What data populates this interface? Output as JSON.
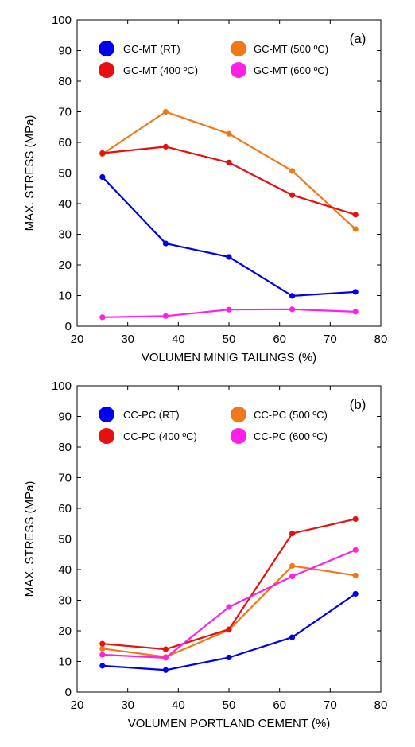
{
  "chart_data": [
    {
      "type": "line",
      "panel_label": "(a)",
      "xlabel": "VOLUMEN MINIG TAILINGS (%)",
      "ylabel": "MAX. STRESS (MPa)",
      "xlim": [
        20,
        80
      ],
      "ylim": [
        0,
        100
      ],
      "xticks": [
        "20",
        "30",
        "40",
        "50",
        "60",
        "70",
        "80"
      ],
      "yticks": [
        "0",
        "10",
        "20",
        "30",
        "40",
        "50",
        "60",
        "70",
        "80",
        "90",
        "100"
      ],
      "grid": false,
      "legend": "top",
      "x": [
        25,
        37.5,
        50,
        62.5,
        75
      ],
      "series": [
        {
          "name": "GC-MT (RT)",
          "color": "#0000ee",
          "values": [
            48.7,
            27.0,
            22.6,
            9.9,
            11.2
          ]
        },
        {
          "name": "GC-MT (500 ºC)",
          "color": "#f07818",
          "values": [
            56.2,
            70.0,
            62.8,
            50.7,
            31.7
          ]
        },
        {
          "name": "GC-MT (400 ºC)",
          "color": "#e61010",
          "values": [
            56.5,
            58.6,
            53.4,
            42.8,
            36.4
          ]
        },
        {
          "name": "GC-MT (600 ºC)",
          "color": "#ff20e8",
          "values": [
            2.9,
            3.3,
            5.4,
            5.5,
            4.7
          ]
        }
      ]
    },
    {
      "type": "line",
      "panel_label": "(b)",
      "xlabel": "VOLUMEN PORTLAND CEMENT (%)",
      "ylabel": "MAX. STRESS (MPa)",
      "xlim": [
        20,
        80
      ],
      "ylim": [
        0,
        100
      ],
      "xticks": [
        "20",
        "30",
        "40",
        "50",
        "60",
        "70",
        "80"
      ],
      "yticks": [
        "0",
        "10",
        "20",
        "30",
        "40",
        "50",
        "60",
        "70",
        "80",
        "90",
        "100"
      ],
      "grid": false,
      "legend": "top",
      "x": [
        25,
        37.5,
        50,
        62.5,
        75
      ],
      "series": [
        {
          "name": "CC-PC (RT)",
          "color": "#0000ee",
          "values": [
            8.6,
            7.2,
            11.3,
            17.9,
            32.1
          ]
        },
        {
          "name": "CC-PC (500 ºC)",
          "color": "#f07818",
          "values": [
            14.2,
            11.5,
            20.3,
            41.2,
            38.1
          ]
        },
        {
          "name": "CC-PC (400 ºC)",
          "color": "#e61010",
          "values": [
            15.8,
            14.0,
            20.5,
            51.8,
            56.5
          ]
        },
        {
          "name": "CC-PC (600 ºC)",
          "color": "#ff20e8",
          "values": [
            12.2,
            11.2,
            27.8,
            37.8,
            46.4
          ]
        }
      ]
    }
  ]
}
